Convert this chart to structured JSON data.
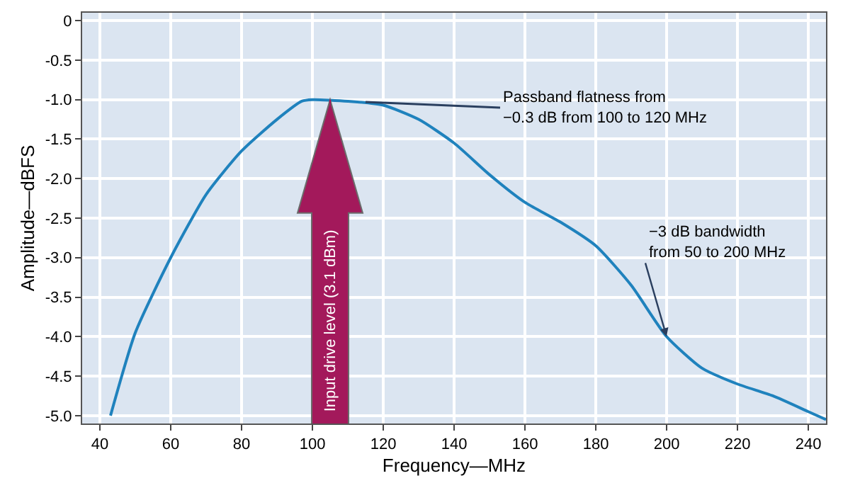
{
  "chart_data": {
    "type": "line",
    "xlabel": "Frequency—MHz",
    "ylabel": "Amplitude—dBFS",
    "x": [
      43,
      50,
      60,
      70,
      80,
      90,
      97,
      100,
      110,
      120,
      130,
      140,
      150,
      160,
      170,
      180,
      190,
      200,
      210,
      220,
      230,
      240,
      245
    ],
    "series": [
      {
        "color": "#1f82bd",
        "values": [
          -5.0,
          -3.95,
          -3.0,
          -2.2,
          -1.65,
          -1.25,
          -1.02,
          -1.0,
          -1.02,
          -1.07,
          -1.25,
          -1.55,
          -1.95,
          -2.3,
          -2.55,
          -2.85,
          -3.35,
          -4.0,
          -4.4,
          -4.6,
          -4.75,
          -4.95,
          -5.05
        ]
      }
    ],
    "xlim": [
      35,
      245
    ],
    "xticks": [
      40,
      60,
      80,
      100,
      120,
      140,
      160,
      180,
      200,
      220,
      240
    ],
    "ylim": [
      -5.1,
      0.1
    ],
    "yticks": [
      0,
      {
        "value": -0.5,
        "label": "-0.5"
      },
      {
        "value": -1,
        "label": "-1.0"
      },
      {
        "value": -1.5,
        "label": "-1.5"
      },
      {
        "value": -2,
        "label": "-2.0"
      },
      {
        "value": -2.5,
        "label": "-2.5"
      },
      {
        "value": -3,
        "label": "-3.0"
      },
      {
        "value": -3.5,
        "label": "-3.5"
      },
      {
        "value": -4,
        "label": "-4.0"
      },
      {
        "value": -4.5,
        "label": "-4.5"
      },
      {
        "value": -5,
        "label": "-5.0"
      }
    ],
    "grid": true,
    "legend": false,
    "marker": "none",
    "line_style": "solid",
    "annotations": [
      {
        "text": "Input drive level (3.1 dBm)",
        "x": 105,
        "y": -1.0
      },
      {
        "text": "Passband flatness from\n−0.3 dB from 100 to 120 MHz",
        "x": 115,
        "y": -1.03
      },
      {
        "text": "−3 dB bandwidth\nfrom 50 to 200 MHz",
        "x": 200,
        "y": -4.0
      }
    ]
  }
}
